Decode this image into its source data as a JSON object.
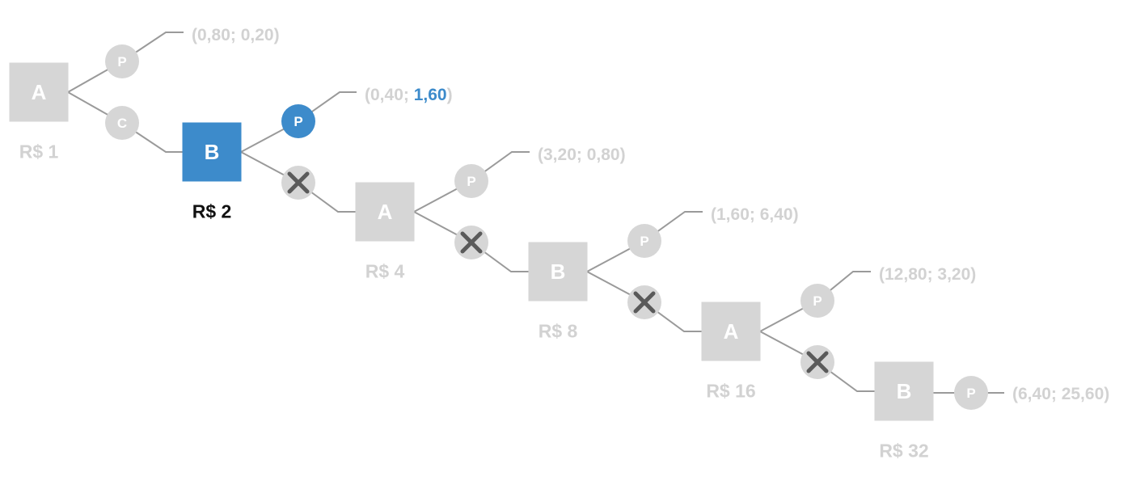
{
  "decisions": [
    {
      "id": "d1",
      "player": "A",
      "pot": "R$ 1",
      "active": false
    },
    {
      "id": "d2",
      "player": "B",
      "pot": "R$ 2",
      "active": true
    },
    {
      "id": "d3",
      "player": "A",
      "pot": "R$ 4",
      "active": false
    },
    {
      "id": "d4",
      "player": "B",
      "pot": "R$ 8",
      "active": false
    },
    {
      "id": "d5",
      "player": "A",
      "pot": "R$ 16",
      "active": false
    },
    {
      "id": "d6",
      "player": "B",
      "pot": "R$ 32",
      "active": false
    }
  ],
  "choices": [
    {
      "id": "c1",
      "symbol": "P",
      "kind": "letter",
      "active": false
    },
    {
      "id": "c2",
      "symbol": "C",
      "kind": "letter",
      "active": false
    },
    {
      "id": "c3",
      "symbol": "P",
      "kind": "letter",
      "active": true
    },
    {
      "id": "c4",
      "symbol": "",
      "kind": "x",
      "active": false
    },
    {
      "id": "c5",
      "symbol": "P",
      "kind": "letter",
      "active": false
    },
    {
      "id": "c6",
      "symbol": "",
      "kind": "x",
      "active": false
    },
    {
      "id": "c7",
      "symbol": "P",
      "kind": "letter",
      "active": false
    },
    {
      "id": "c8",
      "symbol": "",
      "kind": "x",
      "active": false
    },
    {
      "id": "c9",
      "symbol": "P",
      "kind": "letter",
      "active": false
    },
    {
      "id": "c10",
      "symbol": "",
      "kind": "x",
      "active": false
    },
    {
      "id": "c11",
      "symbol": "P",
      "kind": "letter",
      "active": false
    }
  ],
  "payoffs": [
    {
      "id": "p1",
      "open": "(",
      "a": "0,80",
      "sep": "; ",
      "b": "0,20",
      "close": ")",
      "highlight_b": false
    },
    {
      "id": "p2",
      "open": "(",
      "a": "0,40",
      "sep": "; ",
      "b": "1,60",
      "close": ")",
      "highlight_b": true
    },
    {
      "id": "p3",
      "open": "(",
      "a": "3,20",
      "sep": "; ",
      "b": "0,80",
      "close": ")",
      "highlight_b": false
    },
    {
      "id": "p4",
      "open": "(",
      "a": "1,60",
      "sep": "; ",
      "b": "6,40",
      "close": ")",
      "highlight_b": false
    },
    {
      "id": "p5",
      "open": "(",
      "a": "12,80",
      "sep": "; ",
      "b": "3,20",
      "close": ")",
      "highlight_b": false
    },
    {
      "id": "p6",
      "open": "(",
      "a": "6,40",
      "sep": "; ",
      "b": "25,60",
      "close": ")",
      "highlight_b": false
    }
  ],
  "colors": {
    "node": "#d6d6d6",
    "active": "#3d8bcb",
    "edge": "#9a9a9a",
    "x_mark": "#5a5a5a",
    "label": "#d2d2d2"
  }
}
